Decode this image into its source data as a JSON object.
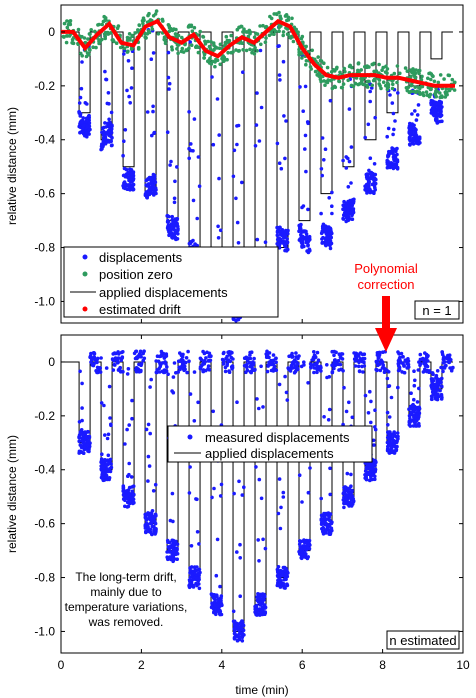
{
  "chart_data": [
    {
      "type": "scatter",
      "panel": "top",
      "ylabel": "relative distance (mm)",
      "xlim": [
        0,
        10
      ],
      "ylim": [
        -1.08,
        0.1
      ],
      "yticks": [
        "0",
        "-0.2",
        "-0.4",
        "-0.6",
        "-0.8",
        "-1.0"
      ],
      "yvalues": [
        0,
        -0.2,
        -0.4,
        -0.6,
        -0.8,
        -1.0
      ],
      "grid": false,
      "legend_position": "bottom-left",
      "series": [
        {
          "name": "displacements",
          "color": "#1a1aff"
        },
        {
          "name": "position zero",
          "color": "#2e9b5e"
        },
        {
          "name": "applied displacements",
          "color": "#000000"
        },
        {
          "name": "estimated drift",
          "color": "#ff0000"
        }
      ],
      "drift": {
        "x": [
          0.0,
          0.3,
          0.6,
          0.9,
          1.2,
          1.5,
          1.8,
          2.1,
          2.4,
          2.7,
          3.0,
          3.3,
          3.6,
          3.9,
          4.2,
          4.5,
          4.8,
          5.1,
          5.4,
          5.7,
          6.0,
          6.3,
          6.6,
          6.9,
          7.2,
          7.5,
          7.8,
          8.1,
          8.4,
          8.7,
          9.0,
          9.3,
          9.6,
          9.8
        ],
        "y": [
          0.0,
          0.0,
          -0.06,
          -0.01,
          0.03,
          -0.04,
          -0.05,
          0.02,
          0.04,
          -0.02,
          -0.04,
          -0.01,
          -0.07,
          -0.09,
          -0.05,
          -0.02,
          -0.04,
          0.0,
          0.04,
          0.02,
          -0.06,
          -0.12,
          -0.16,
          -0.17,
          -0.16,
          -0.16,
          -0.16,
          -0.17,
          -0.17,
          -0.18,
          -0.19,
          -0.2,
          -0.2,
          -0.2
        ]
      },
      "applied_steps": [
        -0.3,
        -0.4,
        -0.5,
        -0.6,
        -0.7,
        -0.8,
        -0.9,
        -1.0,
        -0.9,
        -0.8,
        -0.7,
        -0.6,
        -0.5,
        -0.4,
        -0.3,
        -0.2,
        -0.1
      ],
      "annotation_box": "n  = 1"
    },
    {
      "type": "scatter",
      "panel": "bottom",
      "xlabel": "time (min)",
      "ylabel": "relative distance (mm)",
      "xlim": [
        0,
        10
      ],
      "ylim": [
        -1.08,
        0.1
      ],
      "xticks": [
        "0",
        "2",
        "4",
        "6",
        "8",
        "10"
      ],
      "xvalues": [
        0,
        2,
        4,
        6,
        8,
        10
      ],
      "yticks": [
        "0",
        "-0.2",
        "-0.4",
        "-0.6",
        "-0.8",
        "-1.0"
      ],
      "yvalues": [
        0,
        -0.2,
        -0.4,
        -0.6,
        -0.8,
        -1.0
      ],
      "grid": false,
      "legend_position": "center",
      "series": [
        {
          "name": "measured displacements",
          "color": "#1a1aff"
        },
        {
          "name": "applied displacements",
          "color": "#000000"
        }
      ],
      "annotation_box": "n estimated",
      "note": [
        "The long-term drift,",
        "mainly due to",
        "temperature variations,",
        "was removed."
      ]
    }
  ],
  "arrow_annotation": {
    "lines": [
      "Polynomial",
      "correction"
    ],
    "color": "#ff0000"
  }
}
